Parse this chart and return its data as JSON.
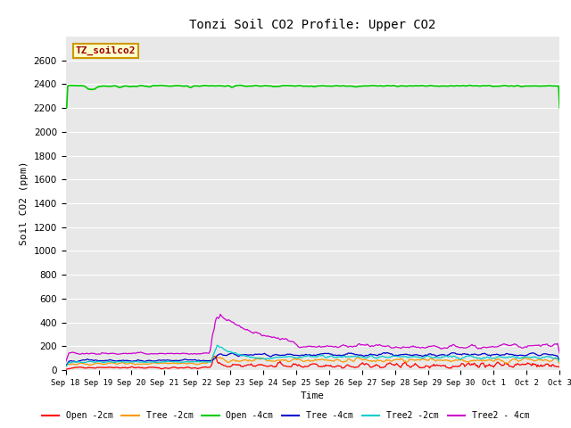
{
  "title": "Tonzi Soil CO2 Profile: Upper CO2",
  "xlabel": "Time",
  "ylabel": "Soil CO2 (ppm)",
  "ylim": [
    0,
    2800
  ],
  "yticks": [
    0,
    200,
    400,
    600,
    800,
    1000,
    1200,
    1400,
    1600,
    1800,
    2000,
    2200,
    2400,
    2600
  ],
  "background_color": "#e8e8e8",
  "annotation_label": "TZ_soilco2",
  "annotation_color": "#990000",
  "annotation_bg": "#ffffcc",
  "annotation_border": "#cc9900",
  "series_colors": {
    "Open -2cm": "#ff0000",
    "Tree -2cm": "#ff9900",
    "Open -4cm": "#00cc00",
    "Tree -4cm": "#0000cc",
    "Tree2 -2cm": "#00cccc",
    "Tree2 - 4cm": "#cc00cc"
  },
  "xtick_labels": [
    "Sep 18",
    "Sep 19",
    "Sep 20",
    "Sep 21",
    "Sep 22",
    "Sep 23",
    "Sep 24",
    "Sep 25",
    "Sep 26",
    "Sep 27",
    "Sep 28",
    "Sep 29",
    "Sep 30",
    "Oct 1",
    "Oct 2",
    "Oct 3"
  ],
  "n_points": 480
}
